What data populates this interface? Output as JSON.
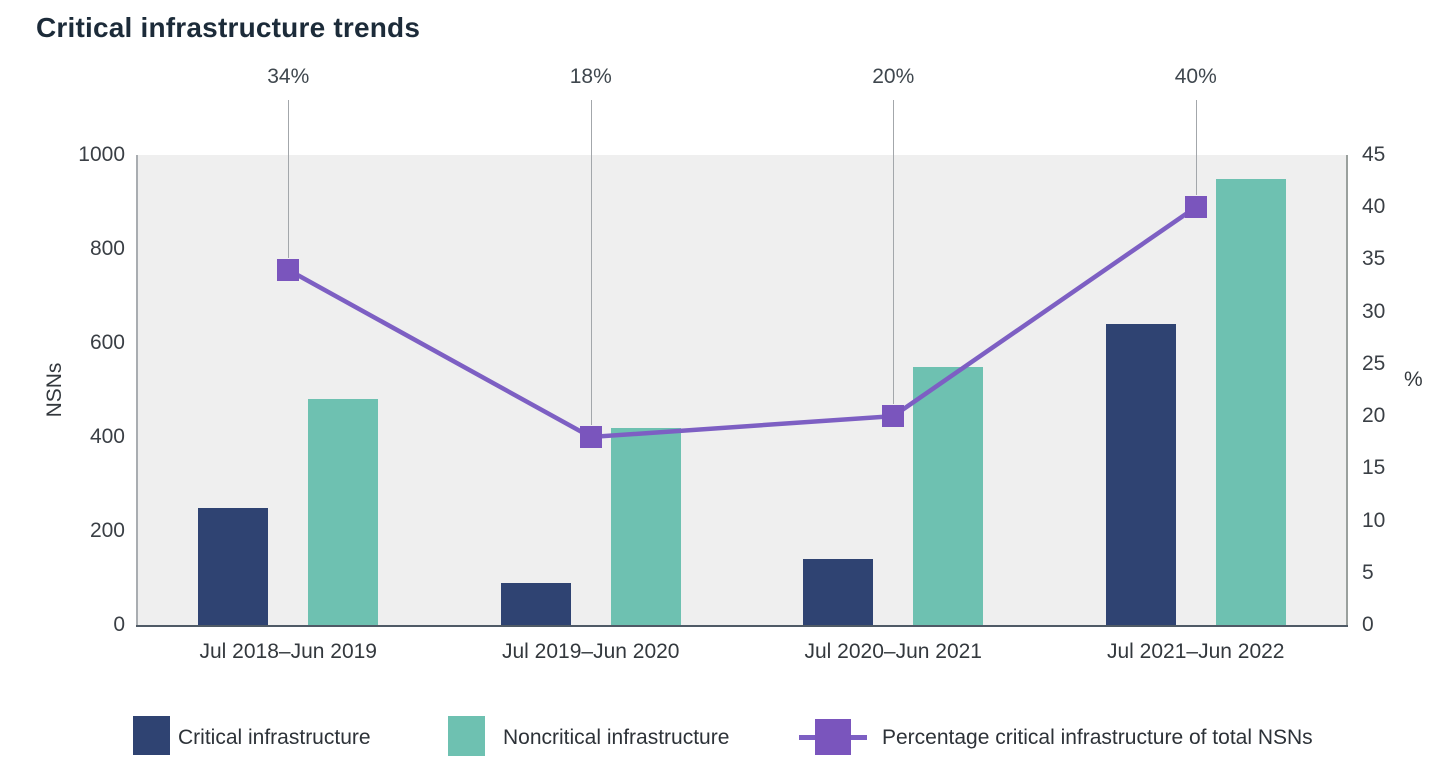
{
  "title": "Critical infrastructure trends",
  "colors": {
    "critical": "#2f4372",
    "noncritical": "#6ec1b1",
    "percentage_line": "#7d5fc3",
    "percentage_marker": "#7a55bd",
    "plot_background": "#efefef",
    "bottom_axis_line": "#4f5a66",
    "side_axis_line": "#a9adb1",
    "callout_line": "#a3a7ab",
    "title_text": "#1c2b39",
    "tick_text": "#3a3f45"
  },
  "legend": {
    "items": [
      {
        "label": "Critical infrastructure",
        "swatch": "critical-swatch"
      },
      {
        "label": "Noncritical infrastructure",
        "swatch": "noncritical-swatch"
      },
      {
        "label": "Percentage critical infrastructure of total NSNs",
        "swatch": "percentage-line-swatch"
      }
    ]
  },
  "chart_data": {
    "type": "bar",
    "subtype": "grouped bars with overlay line on secondary axis",
    "title": "Critical infrastructure trends",
    "categories": [
      "Jul 2018–Jun 2019",
      "Jul 2019–Jun 2020",
      "Jul 2020–Jun 2021",
      "Jul 2021–Jun 2022"
    ],
    "series": [
      {
        "name": "Critical infrastructure",
        "type": "bar",
        "axis": "left",
        "values": [
          250,
          90,
          140,
          640
        ]
      },
      {
        "name": "Noncritical infrastructure",
        "type": "bar",
        "axis": "left",
        "values": [
          480,
          420,
          550,
          950
        ]
      },
      {
        "name": "Percentage critical infrastructure of total NSNs",
        "type": "line",
        "axis": "right",
        "values": [
          34,
          18,
          20,
          40
        ]
      }
    ],
    "annotations": [
      "34%",
      "18%",
      "20%",
      "40%"
    ],
    "y_left": {
      "label": "NSNs",
      "min": 0,
      "max": 1000,
      "ticks": [
        0,
        200,
        400,
        600,
        800,
        1000
      ]
    },
    "y_right": {
      "label": "%",
      "min": 0,
      "max": 45,
      "ticks": [
        0,
        5,
        10,
        15,
        20,
        25,
        30,
        35,
        40,
        45
      ]
    },
    "xlabel": "",
    "grid": false,
    "legend_position": "bottom"
  }
}
